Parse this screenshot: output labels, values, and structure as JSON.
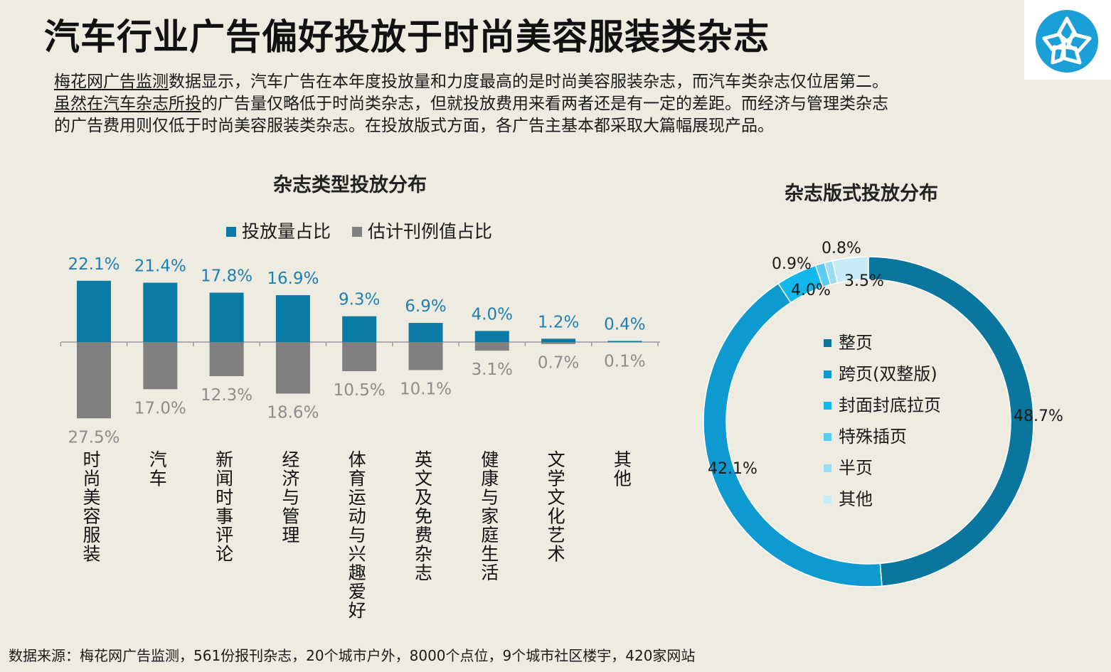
{
  "title": "汽车行业广告偏好投放于时尚美容服装类杂志",
  "description": {
    "line1_link": "梅花网广告监测",
    "line1_rest": "数据显示，汽车广告在本年度投放量和力度最高的是时尚美容服装杂志，而汽车类杂志仅位居第二。",
    "line2_link": "虽然在汽车杂志所投",
    "line2_rest": "的广告量仅略低于时尚类杂志，但就投放费用来看两者还是有一定的差距。而经济与管理类杂志",
    "line3": "的广告费用则仅低于时尚美容服装类杂志。在投放版式方面，各广告主基本都采取大篇幅展现产品。"
  },
  "footer": "数据来源：梅花网广告监测，561份报刊杂志，20个城市户外，8000个点位，9个城市社区楼宇，420家网站",
  "colors": {
    "background": "#eeebe1",
    "blue": "#0a7aa6",
    "gray": "#808080",
    "label_blue": "#1f7fb0",
    "label_gray": "#8c8c8c"
  },
  "chart_data": [
    {
      "type": "bar",
      "title": "杂志类型投放分布",
      "categories": [
        "时尚美容服装",
        "汽车",
        "新闻时事评论",
        "经济与管理",
        "体育运动与兴趣爱好",
        "英文及免费杂志",
        "健康与家庭生活",
        "文学文化艺术",
        "其他"
      ],
      "series": [
        {
          "name": "投放量占比",
          "values": [
            22.1,
            21.4,
            17.8,
            16.9,
            9.3,
            6.9,
            4.0,
            1.2,
            0.4
          ],
          "labels": [
            "22.1%",
            "21.4%",
            "17.8%",
            "16.9%",
            "9.3%",
            "6.9%",
            "4.0%",
            "1.2%",
            "0.4%"
          ],
          "color": "#0a7aa6",
          "direction": "up"
        },
        {
          "name": "估计刊例值占比",
          "values": [
            27.5,
            17.0,
            12.3,
            18.6,
            10.5,
            10.1,
            3.1,
            0.7,
            0.1
          ],
          "labels": [
            "27.5%",
            "17.0%",
            "12.3%",
            "18.6%",
            "10.5%",
            "10.1%",
            "3.1%",
            "0.7%",
            "0.1%"
          ],
          "color": "#808080",
          "direction": "down"
        }
      ],
      "legend": "top"
    },
    {
      "type": "pie",
      "title": "杂志版式投放分布",
      "donut": true,
      "slices": [
        {
          "name": "整页",
          "value": 48.7,
          "label": "48.7%",
          "color": "#0a769e"
        },
        {
          "name": "跨页(双整版)",
          "value": 42.1,
          "label": "42.1%",
          "color": "#0d9ad0"
        },
        {
          "name": "封面封底拉页",
          "value": 4.0,
          "label": "4.0%",
          "color": "#12b7ec"
        },
        {
          "name": "特殊插页",
          "value": 0.9,
          "label": "0.9%",
          "color": "#5ccbf0"
        },
        {
          "name": "半页",
          "value": 0.8,
          "label": "0.8%",
          "color": "#99dcf4"
        },
        {
          "name": "其他",
          "value": 3.5,
          "label": "3.5%",
          "color": "#c6ecf9"
        }
      ],
      "legend": "center"
    }
  ]
}
